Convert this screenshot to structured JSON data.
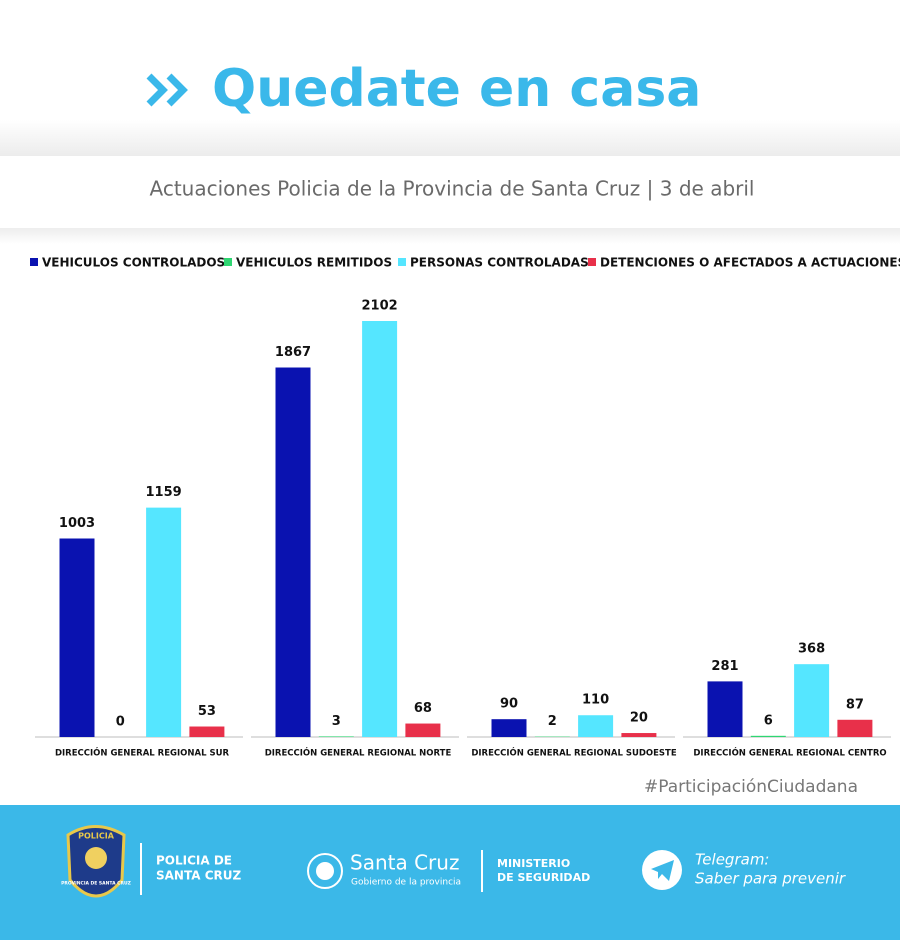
{
  "header": {
    "title": "Quedate en casa",
    "subtitle": "Actuaciones Policia de la Provincia de Santa Cruz | 3 de abril"
  },
  "chart_data": {
    "type": "bar",
    "categories": [
      "DIRECCIÓN GENERAL REGIONAL SUR",
      "DIRECCIÓN GENERAL REGIONAL NORTE",
      "DIRECCIÓN GENERAL REGIONAL SUDOESTE",
      "DIRECCIÓN GENERAL REGIONAL CENTRO"
    ],
    "series": [
      {
        "name": "VEHICULOS CONTROLADOS",
        "color": "#0a12b0",
        "values": [
          1003,
          1867,
          90,
          281
        ]
      },
      {
        "name": "VEHICULOS REMITIDOS",
        "color": "#2fd672",
        "values": [
          0,
          3,
          2,
          6
        ]
      },
      {
        "name": "PERSONAS CONTROLADAS",
        "color": "#55e6ff",
        "values": [
          1159,
          2102,
          110,
          368
        ]
      },
      {
        "name": "DETENCIONES O AFECTADOS A ACTUACIONES",
        "color": "#e8304a",
        "values": [
          53,
          68,
          20,
          87
        ]
      }
    ]
  },
  "hashtag": "#ParticipaciónCiudadana",
  "footer": {
    "badge_top": "POLICIA",
    "badge_bottom": "PROVINCIA DE SANTA CRUZ",
    "police_line1": "POLICIA DE",
    "police_line2": "SANTA CRUZ",
    "gov_name": "Santa Cruz",
    "gov_sub": "Gobierno de la provincia",
    "ministry_line1": "MINISTERIO",
    "ministry_line2": "DE SEGURIDAD",
    "telegram_line1": "Telegram:",
    "telegram_line2": "Saber para prevenir"
  }
}
